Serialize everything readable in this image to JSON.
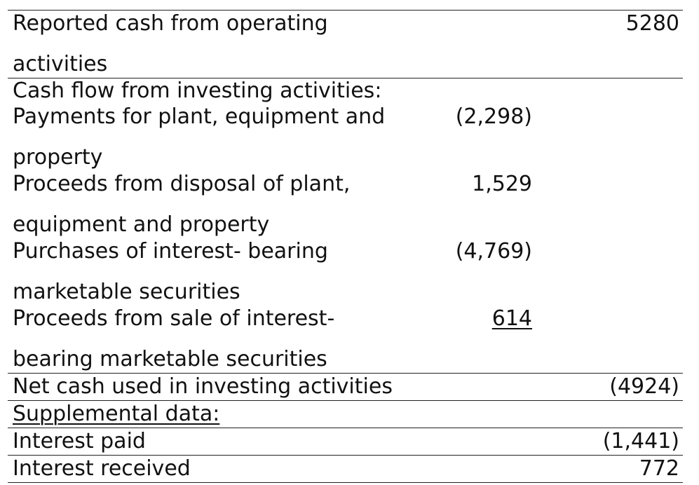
{
  "rows": {
    "reported": {
      "label_line1": "Reported cash from operating",
      "label_line2": "activities",
      "right": "5280"
    },
    "investing_header": {
      "label": "Cash flow from investing activities:"
    },
    "payments_ppe": {
      "label_line1": "Payments for plant, equipment and",
      "label_line2": "property",
      "mid": "(2,298)"
    },
    "proceeds_ppe": {
      "label_line1": "Proceeds from disposal of plant,",
      "label_line2": "equipment and property",
      "mid": "1,529"
    },
    "purchases_securities": {
      "label_line1": "Purchases of interest- bearing",
      "label_line2": "marketable securities",
      "mid": "(4,769)"
    },
    "proceeds_securities": {
      "label_line1": "Proceeds from sale of  interest-",
      "label_line2": "bearing marketable securities",
      "mid": "614"
    },
    "net_investing": {
      "label": "Net cash used in investing activities",
      "right": "(4924)"
    },
    "supplemental": {
      "label": "Supplemental data:"
    },
    "interest_paid": {
      "label": "Interest paid",
      "right": "(1,441)"
    },
    "interest_received": {
      "label": "Interest received",
      "right": "772"
    }
  }
}
